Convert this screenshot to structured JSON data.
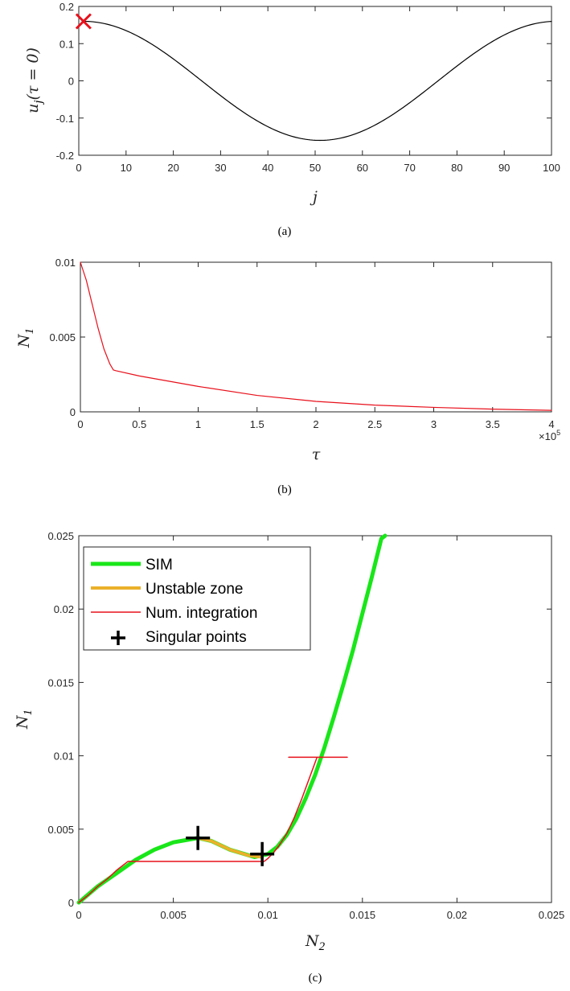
{
  "chart_data": [
    {
      "type": "line",
      "caption": "(a)",
      "xlabel": "j",
      "ylabel": "u_j(τ = 0)",
      "ylabel_parts": {
        "base": "u",
        "sub": "j",
        "rest": "(τ = 0)"
      },
      "xlim": [
        0,
        100
      ],
      "ylim": [
        -0.2,
        0.2
      ],
      "xticks": [
        0,
        10,
        20,
        30,
        40,
        50,
        60,
        70,
        80,
        90,
        100
      ],
      "xtick_labels": [
        "0",
        "10",
        "20",
        "30",
        "40",
        "50",
        "60",
        "70",
        "80",
        "90",
        "100"
      ],
      "yticks": [
        -0.2,
        -0.1,
        0,
        0.1,
        0.2
      ],
      "ytick_labels": [
        "-0.2",
        "-0.1",
        "0",
        "0.1",
        "0.2"
      ],
      "grid": false,
      "series": [
        {
          "color": "#000000",
          "amplitude": 0.16,
          "period": 100,
          "phase_origin": 1,
          "x": [
            1,
            10,
            20,
            30,
            40,
            51,
            60,
            70,
            80,
            90,
            100
          ],
          "y": [
            0.16,
            0.136,
            0.068,
            -0.011,
            -0.09,
            -0.16,
            -0.136,
            -0.068,
            0.02,
            0.098,
            0.159
          ]
        }
      ],
      "markers": [
        {
          "x": 1,
          "y": 0.16,
          "symbol": "x",
          "color": "#e8101b"
        }
      ]
    },
    {
      "type": "line",
      "caption": "(b)",
      "xlabel": "τ",
      "ylabel": "N_1",
      "ylabel_parts": {
        "base": "N",
        "sub": "1"
      },
      "xlim": [
        0,
        4
      ],
      "x_multiplier": "×10",
      "x_multiplier_exp": "5",
      "ylim": [
        0,
        0.01
      ],
      "xticks": [
        0,
        0.5,
        1,
        1.5,
        2,
        2.5,
        3,
        3.5,
        4
      ],
      "xtick_labels": [
        "0",
        "0.5",
        "1",
        "1.5",
        "2",
        "2.5",
        "3",
        "3.5",
        "4"
      ],
      "yticks": [
        0,
        0.005,
        0.01
      ],
      "ytick_labels": [
        "0",
        "0.005",
        "0.01"
      ],
      "grid": false,
      "series": [
        {
          "color": "#e8101b",
          "x": [
            0,
            0.05,
            0.1,
            0.15,
            0.2,
            0.25,
            0.28,
            0.3,
            0.5,
            1,
            1.5,
            2,
            2.5,
            3,
            3.5,
            4
          ],
          "y": [
            0.01,
            0.0088,
            0.0072,
            0.0056,
            0.0042,
            0.0032,
            0.0028,
            0.00275,
            0.0024,
            0.0017,
            0.0011,
            0.0007,
            0.00045,
            0.0003,
            0.00018,
            0.0001
          ]
        }
      ]
    },
    {
      "type": "line",
      "caption": "(c)",
      "xlabel": "N_2",
      "xlabel_parts": {
        "base": "N",
        "sub": "2"
      },
      "ylabel": "N_1",
      "ylabel_parts": {
        "base": "N",
        "sub": "1"
      },
      "xlim": [
        0,
        0.025
      ],
      "ylim": [
        0,
        0.025
      ],
      "xticks": [
        0,
        0.005,
        0.01,
        0.015,
        0.02,
        0.025
      ],
      "xtick_labels": [
        "0",
        "0.005",
        "0.01",
        "0.015",
        "0.02",
        "0.025"
      ],
      "yticks": [
        0,
        0.005,
        0.01,
        0.015,
        0.02,
        0.025
      ],
      "ytick_labels": [
        "0",
        "0.005",
        "0.01",
        "0.015",
        "0.02",
        "0.025"
      ],
      "grid": false,
      "legend_position": "top-left",
      "series": [
        {
          "name": "SIM",
          "color": "#19e619",
          "line_width": 5,
          "x": [
            0,
            0.001,
            0.002,
            0.003,
            0.004,
            0.005,
            0.0063,
            0.007,
            0.008,
            0.0093,
            0.01,
            0.0105,
            0.011,
            0.0115,
            0.012,
            0.0125,
            0.013,
            0.0135,
            0.014,
            0.0145,
            0.015,
            0.0155,
            0.016,
            0.0162
          ],
          "y": [
            0,
            0.0011,
            0.002,
            0.0029,
            0.0036,
            0.0041,
            0.0044,
            0.0042,
            0.0036,
            0.0031,
            0.0033,
            0.0038,
            0.0046,
            0.0057,
            0.0071,
            0.0087,
            0.0106,
            0.0127,
            0.0149,
            0.0172,
            0.0197,
            0.0222,
            0.0248,
            0.025
          ]
        },
        {
          "name": "Unstable zone",
          "color": "#ebb02a",
          "line_width": 4,
          "x": [
            0.0063,
            0.007,
            0.008,
            0.009,
            0.0097
          ],
          "y": [
            0.0044,
            0.0042,
            0.0036,
            0.0032,
            0.0031
          ]
        },
        {
          "name": "Num. integration",
          "color": "#e8101b",
          "line_width": 1.5,
          "branches": [
            {
              "x": [
                0.0142,
                0.0111,
                0.0126,
                0.0122,
                0.0118,
                0.0114,
                0.011,
                0.0106,
                0.0103,
                0.01,
                0.0098,
                0.0026,
                0.002,
                0.0015,
                0.001,
                0.0005,
                0
              ],
              "y": [
                0.0099,
                0.0099,
                0.0099,
                0.0085,
                0.0071,
                0.0058,
                0.0047,
                0.0039,
                0.0034,
                0.003,
                0.0028,
                0.0028,
                0.0022,
                0.0016,
                0.0011,
                0.0005,
                0
              ]
            }
          ]
        },
        {
          "name": "Singular points",
          "color": "#000000",
          "symbol": "+",
          "x": [
            0.0063,
            0.0097
          ],
          "y": [
            0.0044,
            0.0033
          ]
        }
      ]
    }
  ]
}
